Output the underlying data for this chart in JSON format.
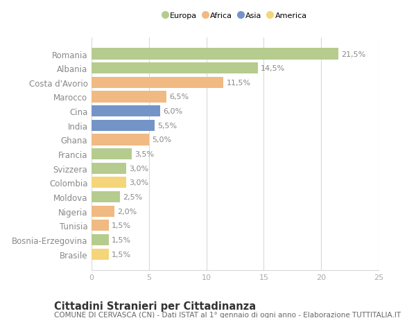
{
  "categories": [
    "Romania",
    "Albania",
    "Costa d'Avorio",
    "Marocco",
    "Cina",
    "India",
    "Ghana",
    "Francia",
    "Svizzera",
    "Colombia",
    "Moldova",
    "Nigeria",
    "Tunisia",
    "Bosnia-Erzegovina",
    "Brasile"
  ],
  "values": [
    21.5,
    14.5,
    11.5,
    6.5,
    6.0,
    5.5,
    5.0,
    3.5,
    3.0,
    3.0,
    2.5,
    2.0,
    1.5,
    1.5,
    1.5
  ],
  "regions": [
    "Europa",
    "Europa",
    "Africa",
    "Africa",
    "Asia",
    "Asia",
    "Africa",
    "Europa",
    "Europa",
    "America",
    "Europa",
    "Africa",
    "Africa",
    "Europa",
    "America"
  ],
  "colors": {
    "Europa": "#b5cc8e",
    "Africa": "#f0ba82",
    "Asia": "#7494c8",
    "America": "#f5d57a"
  },
  "legend_order": [
    "Europa",
    "Africa",
    "Asia",
    "America"
  ],
  "xlim": [
    0,
    25
  ],
  "xticks": [
    0,
    5,
    10,
    15,
    20,
    25
  ],
  "title": "Cittadini Stranieri per Cittadinanza",
  "subtitle": "COMUNE DI CERVASCA (CN) - Dati ISTAT al 1° gennaio di ogni anno - Elaborazione TUTTITALIA.IT",
  "bg_color": "#ffffff",
  "grid_color": "#d8d8d8",
  "bar_height": 0.78,
  "label_fontsize": 8.0,
  "ytick_fontsize": 8.5,
  "xtick_fontsize": 8.0,
  "title_fontsize": 10.5,
  "subtitle_fontsize": 7.5,
  "label_color": "#888888",
  "ytick_color": "#888888",
  "xtick_color": "#aaaaaa"
}
